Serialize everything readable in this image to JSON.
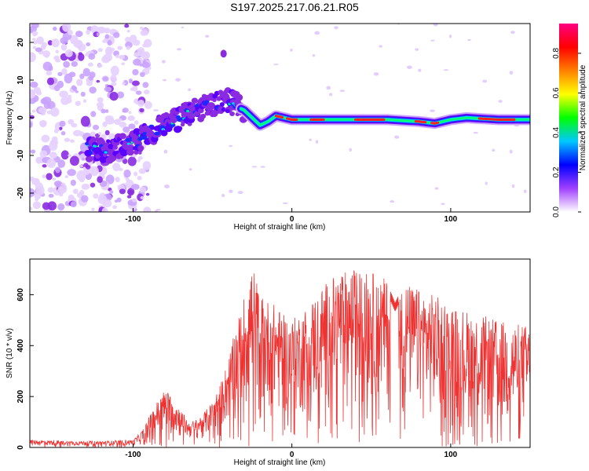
{
  "title": "S197.2025.217.06.21.R05",
  "chart_data": [
    {
      "type": "heatmap",
      "xlabel": "Height of straight line (km)",
      "ylabel": "Frequency (Hz)",
      "xlim": [
        -165,
        150
      ],
      "ylim": [
        -25,
        25
      ],
      "x_ticks": [
        -100,
        0,
        100
      ],
      "y_ticks": [
        -20,
        -10,
        0,
        10,
        20
      ],
      "colorbar": {
        "label": "Normalized spectral amplitude",
        "range": [
          0,
          0.95
        ],
        "ticks": [
          0.0,
          0.2,
          0.4,
          0.6,
          0.8
        ],
        "colors": [
          "#ffffff",
          "#a040ff",
          "#0000ff",
          "#00c8ff",
          "#00ff00",
          "#ffff00",
          "#ff8000",
          "#ff0000",
          "#ff0080"
        ]
      },
      "ridge": {
        "x": [
          -128,
          -120,
          -110,
          -100,
          -90,
          -80,
          -70,
          -60,
          -50,
          -40,
          -35,
          -30,
          -25,
          -20,
          -15,
          -10,
          -5,
          0,
          20,
          40,
          60,
          80,
          90,
          100,
          110,
          130,
          150
        ],
        "frequency": [
          -8,
          -9,
          -8,
          -7,
          -4,
          -2,
          0,
          2,
          3.5,
          4.5,
          3,
          2,
          0,
          -2,
          -1,
          0.5,
          0,
          -0.5,
          -0.5,
          -0.5,
          -0.5,
          -1,
          -1.5,
          -0.5,
          0,
          -0.5,
          -0.5
        ]
      },
      "noise_region": {
        "x_from": -165,
        "x_to": -100
      }
    },
    {
      "type": "area",
      "xlabel": "Height of straight line (km)",
      "ylabel": "SNR (10 * v/v)",
      "xlim": [
        -165,
        150
      ],
      "ylim": [
        0,
        740
      ],
      "x_ticks": [
        -100,
        0,
        100
      ],
      "y_ticks": [
        0,
        200,
        400,
        600
      ],
      "line_color": "#ee3333",
      "series": [
        {
          "name": "",
          "x": [
            -165,
            -140,
            -120,
            -100,
            -95,
            -90,
            -85,
            -80,
            -75,
            -70,
            -65,
            -60,
            -55,
            -50,
            -45,
            -40,
            -35,
            -30,
            -25,
            -20,
            -15,
            -10,
            -5,
            0,
            10,
            20,
            30,
            40,
            50,
            60,
            65,
            70,
            80,
            90,
            100,
            110,
            120,
            130,
            140,
            150
          ],
          "envelope": [
            30,
            25,
            25,
            30,
            60,
            120,
            180,
            230,
            200,
            150,
            100,
            110,
            140,
            180,
            250,
            350,
            480,
            600,
            730,
            600,
            580,
            560,
            520,
            500,
            560,
            640,
            690,
            700,
            690,
            660,
            580,
            650,
            620,
            600,
            560,
            540,
            520,
            500,
            490,
            480
          ],
          "floor": [
            5,
            5,
            5,
            5,
            10,
            20,
            30,
            40,
            40,
            30,
            30,
            30,
            40,
            50,
            60,
            80,
            100,
            100,
            120,
            120,
            110,
            100,
            100,
            100,
            110,
            130,
            150,
            160,
            150,
            130,
            80,
            120,
            100,
            80,
            60,
            50,
            40,
            40,
            40,
            40
          ]
        }
      ]
    }
  ]
}
